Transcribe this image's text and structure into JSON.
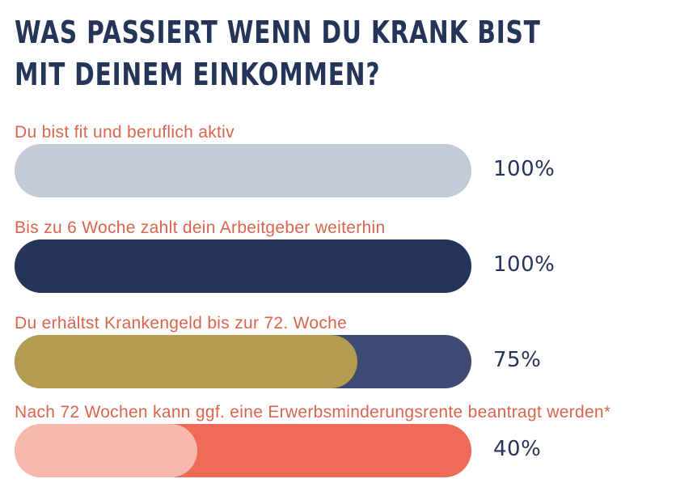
{
  "title_lines": [
    "WAS PASSIERT WENN DU KRANK BIST",
    "MIT DEINEM EINKOMMEN?"
  ],
  "colors": {
    "title": "#243559",
    "label": "#d9654e",
    "value_text": "#243559"
  },
  "chart_data": {
    "type": "bar",
    "orientation": "horizontal",
    "xlim": [
      0,
      100
    ],
    "categories": [
      "Du bist fit und beruflich aktiv",
      "Bis zu 6 Woche zahlt dein Arbeitgeber weiterhin",
      "Du erhältst Krankengeld bis zur 72. Woche",
      "Nach 72 Wochen kann ggf. eine Erwerbsminderungsrente beantragt werden*"
    ],
    "values": [
      100,
      100,
      75,
      40
    ],
    "value_labels": [
      "100%",
      "100%",
      "75%",
      "40%"
    ],
    "fill_colors": [
      "#c5cad8",
      "#243559",
      "#b49b52",
      "#f6b8ad"
    ],
    "track_colors": [
      "#c5cad8",
      "#243559",
      "#3d4a73",
      "#ef6a57"
    ]
  }
}
